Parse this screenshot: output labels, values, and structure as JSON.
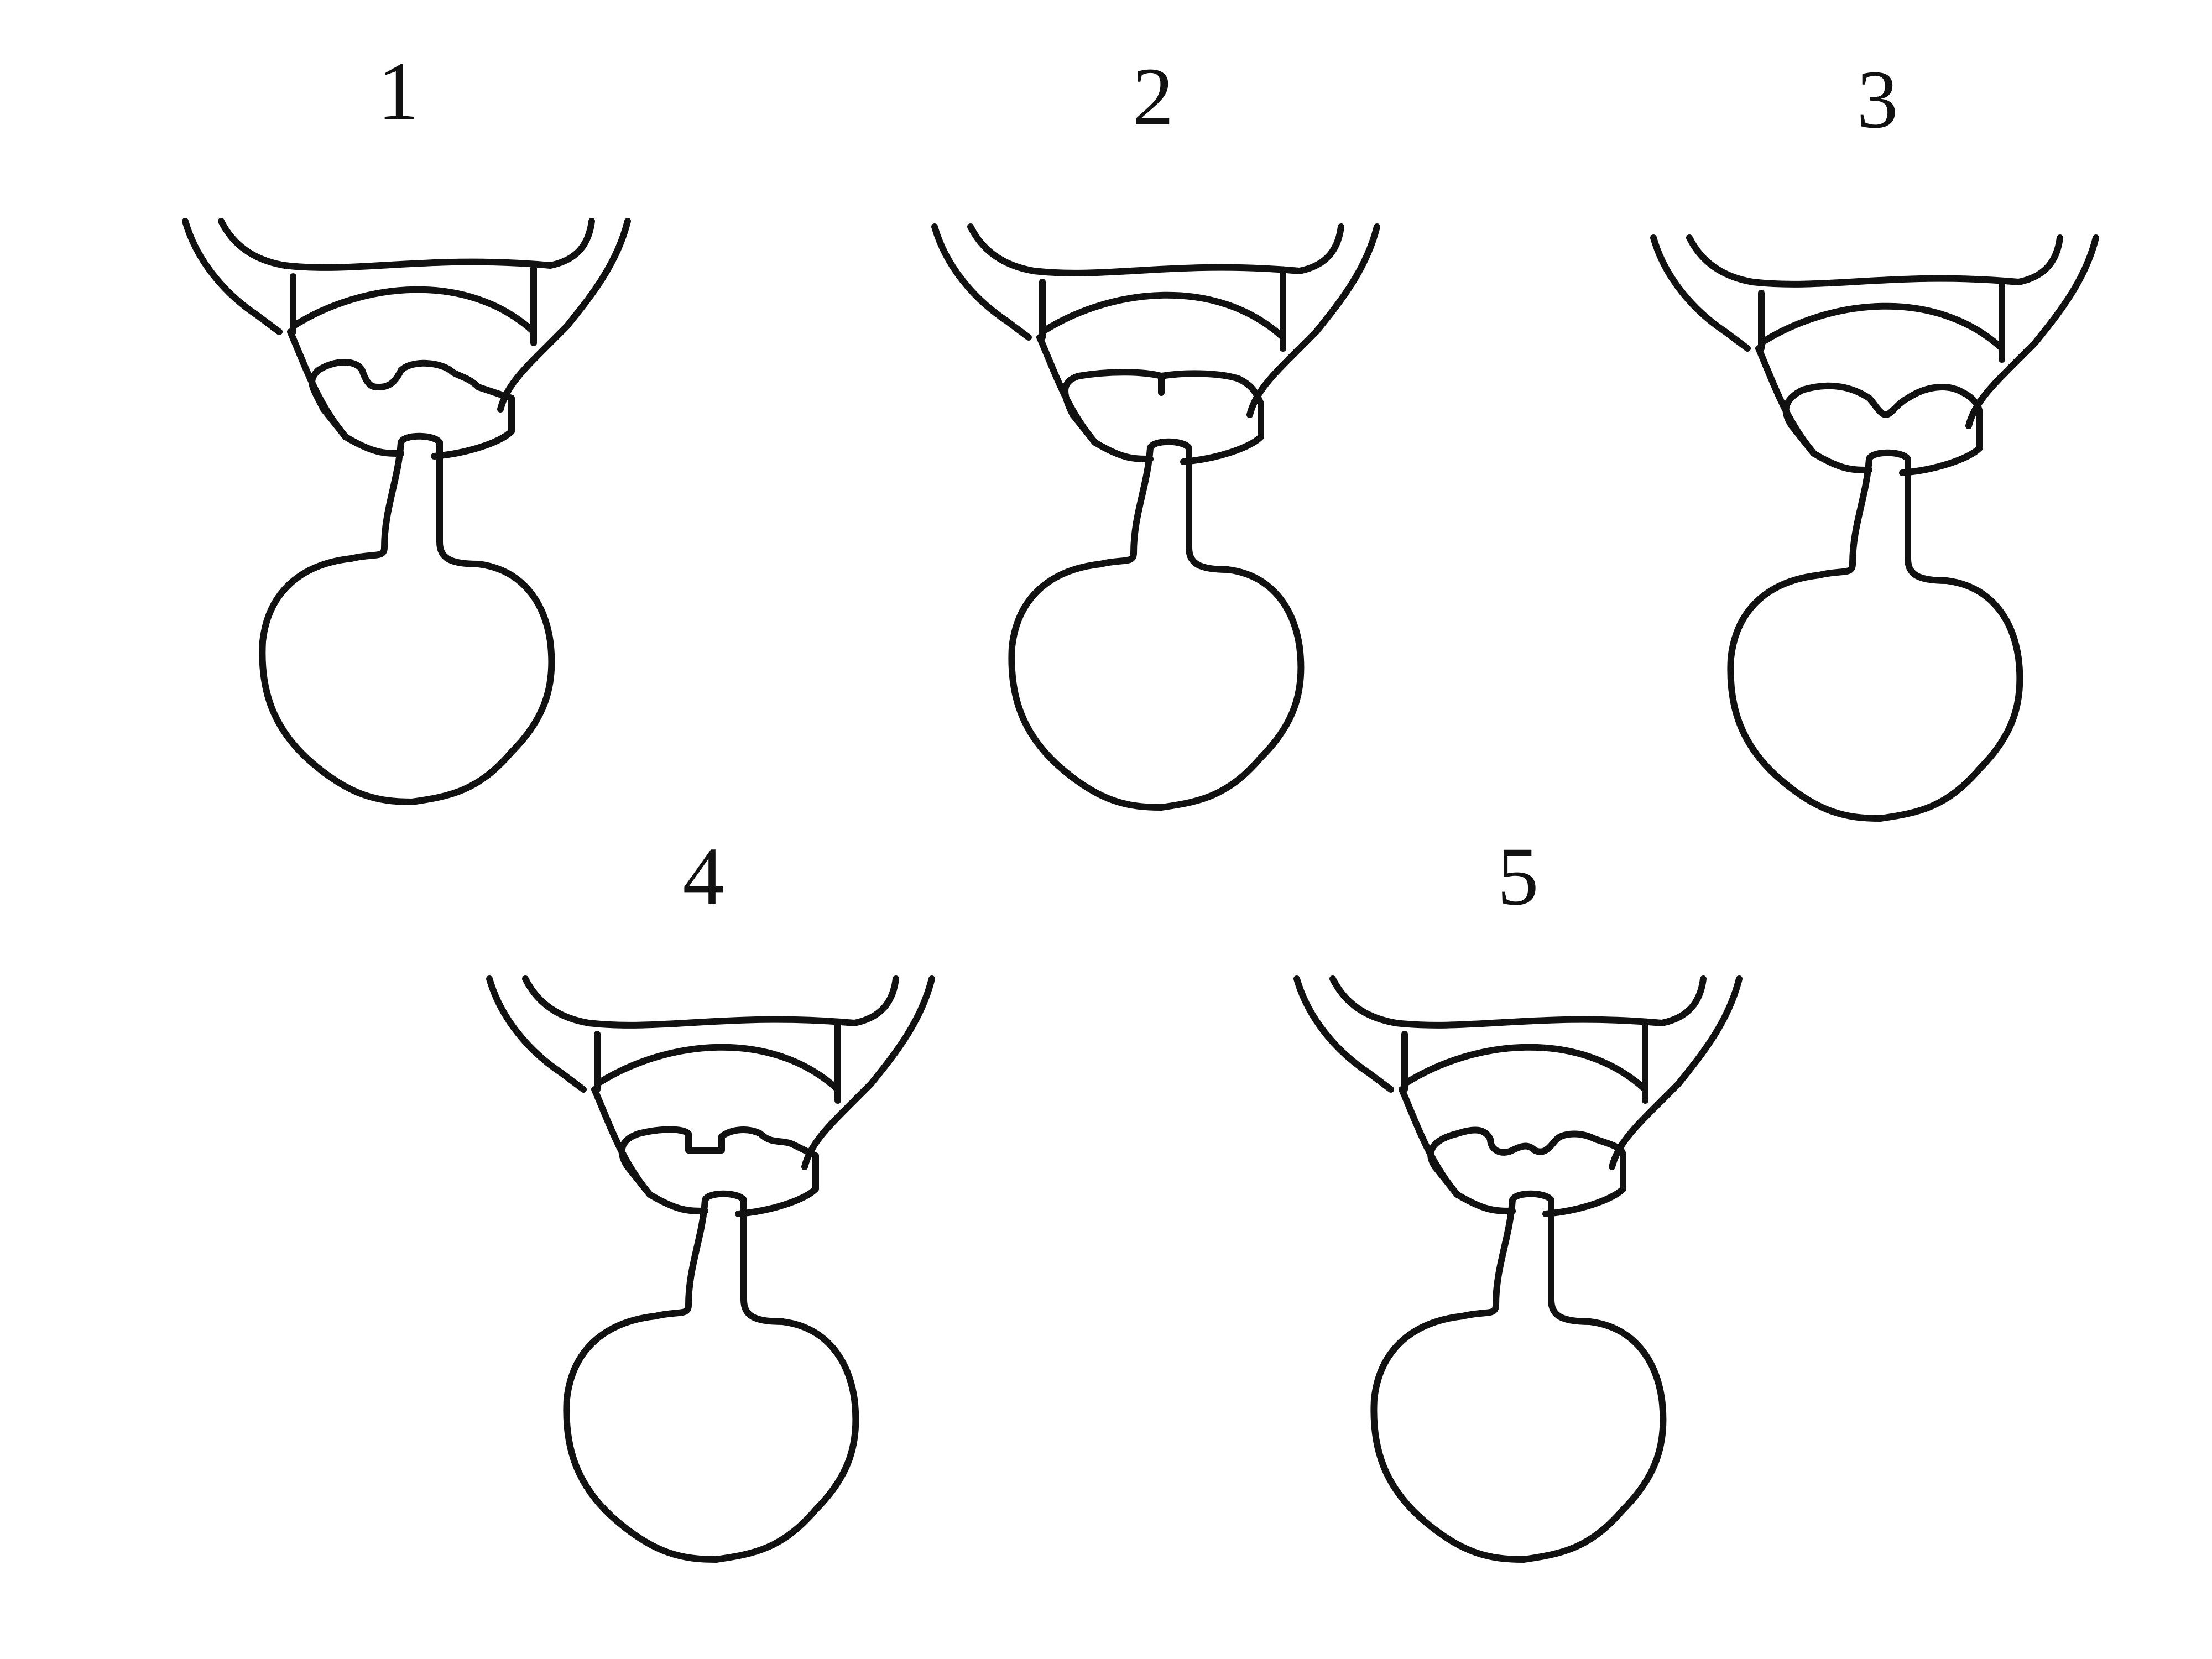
{
  "figure": {
    "stroke_color": "#111111",
    "background": "#ffffff",
    "panels": [
      {
        "label": "1",
        "style": "separated-lobes"
      },
      {
        "label": "2",
        "style": "closed-notch"
      },
      {
        "label": "3",
        "style": "v-notch"
      },
      {
        "label": "4",
        "style": "square-notch"
      },
      {
        "label": "5",
        "style": "wavy-notch"
      }
    ]
  }
}
